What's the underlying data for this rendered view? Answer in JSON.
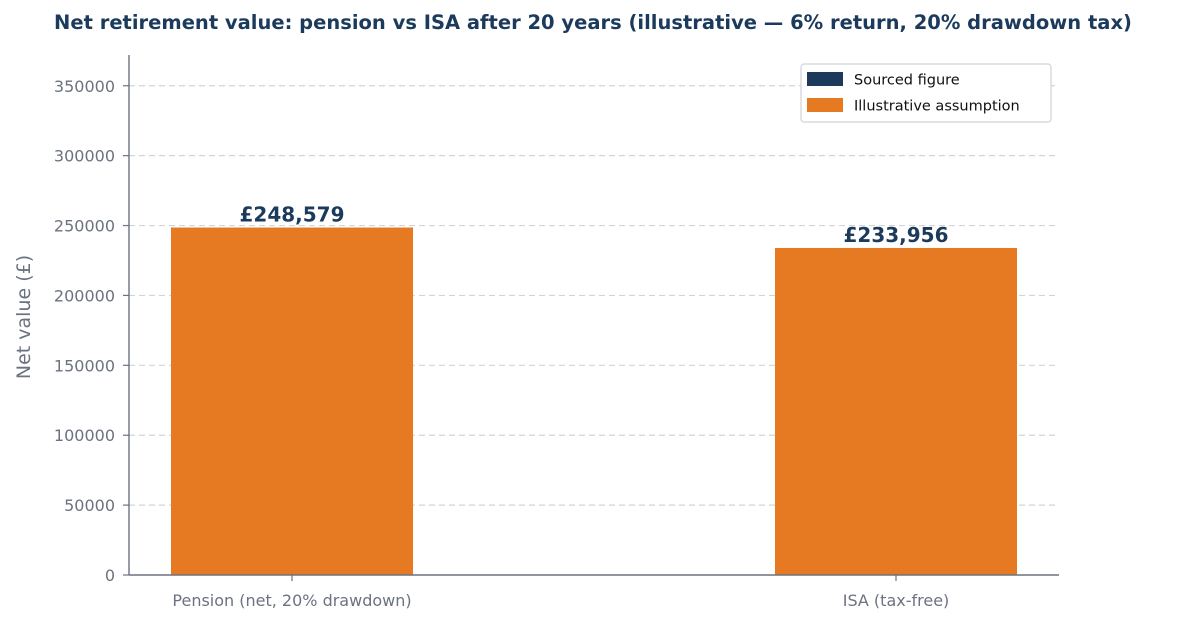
{
  "colors": {
    "sourced": "#1b3a5c",
    "illustrative": "#e67a22",
    "axis": "#6b7280",
    "grid": "#d1d5db"
  },
  "chart_data": {
    "type": "bar",
    "title": "Net retirement value: pension vs ISA after 20 years (illustrative — 6% return, 20% drawdown tax)",
    "xlabel": "",
    "ylabel": "Net value (£)",
    "ylim": [
      0,
      372000
    ],
    "yticks": [
      0,
      50000,
      100000,
      150000,
      200000,
      250000,
      300000,
      350000
    ],
    "grid": true,
    "legend_position": "top-right",
    "categories": [
      "Pension (net, 20% drawdown)",
      "ISA (tax-free)"
    ],
    "values": [
      248579,
      233956
    ],
    "data_labels": [
      "£248,579",
      "£233,956"
    ],
    "bar_kinds": [
      "illustrative",
      "illustrative"
    ],
    "legend": [
      {
        "label": "Sourced figure",
        "kind": "sourced"
      },
      {
        "label": "Illustrative assumption",
        "kind": "illustrative"
      }
    ]
  }
}
